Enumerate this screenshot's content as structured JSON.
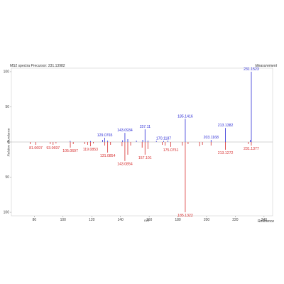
{
  "chart_data": {
    "type": "bar",
    "title": "MS2 spectra Precursor: 231.13982",
    "top_label": "Measurement",
    "bottom_label": "Reference",
    "xlabel": "m/z",
    "ylabel": "Relative abundance",
    "xlim": [
      64,
      246
    ],
    "ylim": [
      -105,
      105
    ],
    "x_ticks": [
      80,
      100,
      120,
      140,
      160,
      180,
      200,
      220,
      240
    ],
    "y_ticks": [
      {
        "value": 100,
        "label": "100"
      },
      {
        "value": 50,
        "label": "50"
      },
      {
        "value": 0,
        "label": "0"
      },
      {
        "value": -50,
        "label": "50"
      },
      {
        "value": -100,
        "label": "100"
      }
    ],
    "grid": false,
    "series": [
      {
        "name": "Measurement",
        "color": "#2b2bd6",
        "peaks": [
          {
            "x": 105.0,
            "y": 1.5
          },
          {
            "x": 119.1,
            "y": 1.2
          },
          {
            "x": 127.5,
            "y": 3
          },
          {
            "x": 129.0765,
            "y": 6,
            "label": "129.0765"
          },
          {
            "x": 131.1,
            "y": 2
          },
          {
            "x": 141.5,
            "y": 2.5
          },
          {
            "x": 143.0934,
            "y": 13,
            "label": "143.0934"
          },
          {
            "x": 145.1,
            "y": 4
          },
          {
            "x": 151.1,
            "y": 2
          },
          {
            "x": 155.5,
            "y": 3
          },
          {
            "x": 157.11,
            "y": 18,
            "label": "157.11"
          },
          {
            "x": 159.1,
            "y": 2
          },
          {
            "x": 165.0,
            "y": 1.5
          },
          {
            "x": 170.1187,
            "y": 1.5,
            "label": "170.1187"
          },
          {
            "x": 173.1,
            "y": 2
          },
          {
            "x": 185.1416,
            "y": 33,
            "label": "185.1416"
          },
          {
            "x": 203.1168,
            "y": 3,
            "label": "203.1168"
          },
          {
            "x": 213.1382,
            "y": 20,
            "label": "213.1382"
          },
          {
            "x": 230.5,
            "y": 3
          },
          {
            "x": 231.1523,
            "y": 100,
            "label": "231.1523"
          }
        ]
      },
      {
        "name": "Reference",
        "color": "#d62b2b",
        "peaks": [
          {
            "x": 77.1,
            "y": -3
          },
          {
            "x": 81.0697,
            "y": -4,
            "label": "81.0697"
          },
          {
            "x": 91.1,
            "y": -3
          },
          {
            "x": 93.0697,
            "y": -4,
            "label": "93.0697"
          },
          {
            "x": 95.1,
            "y": -2
          },
          {
            "x": 105.0697,
            "y": -8,
            "label": "105.0697"
          },
          {
            "x": 107.1,
            "y": -3
          },
          {
            "x": 115.1,
            "y": -3
          },
          {
            "x": 117.1,
            "y": -4
          },
          {
            "x": 119.0853,
            "y": -6,
            "label": "119.0853"
          },
          {
            "x": 121.1,
            "y": -2
          },
          {
            "x": 129.1,
            "y": -5
          },
          {
            "x": 131.0854,
            "y": -15,
            "label": "131.0854"
          },
          {
            "x": 133.1,
            "y": -4
          },
          {
            "x": 141.1,
            "y": -6
          },
          {
            "x": 143.0854,
            "y": -27,
            "label": "143.0854"
          },
          {
            "x": 145.1,
            "y": -18
          },
          {
            "x": 147.1,
            "y": -5
          },
          {
            "x": 155.1,
            "y": -8
          },
          {
            "x": 157.101,
            "y": -18,
            "label": "157.101"
          },
          {
            "x": 159.1,
            "y": -10
          },
          {
            "x": 169.1,
            "y": -4
          },
          {
            "x": 171.1,
            "y": -5
          },
          {
            "x": 175.0751,
            "y": -7,
            "label": "175.0751"
          },
          {
            "x": 183.1,
            "y": -5
          },
          {
            "x": 185.1322,
            "y": -100,
            "label": "185.1322"
          },
          {
            "x": 187.1,
            "y": -3
          },
          {
            "x": 195.1,
            "y": -6
          },
          {
            "x": 197.1,
            "y": -4
          },
          {
            "x": 203.1,
            "y": -5
          },
          {
            "x": 213.1272,
            "y": -11,
            "label": "213.1272"
          },
          {
            "x": 229.1,
            "y": -3
          },
          {
            "x": 231.1377,
            "y": -5,
            "label": "231.1377"
          }
        ]
      }
    ]
  }
}
